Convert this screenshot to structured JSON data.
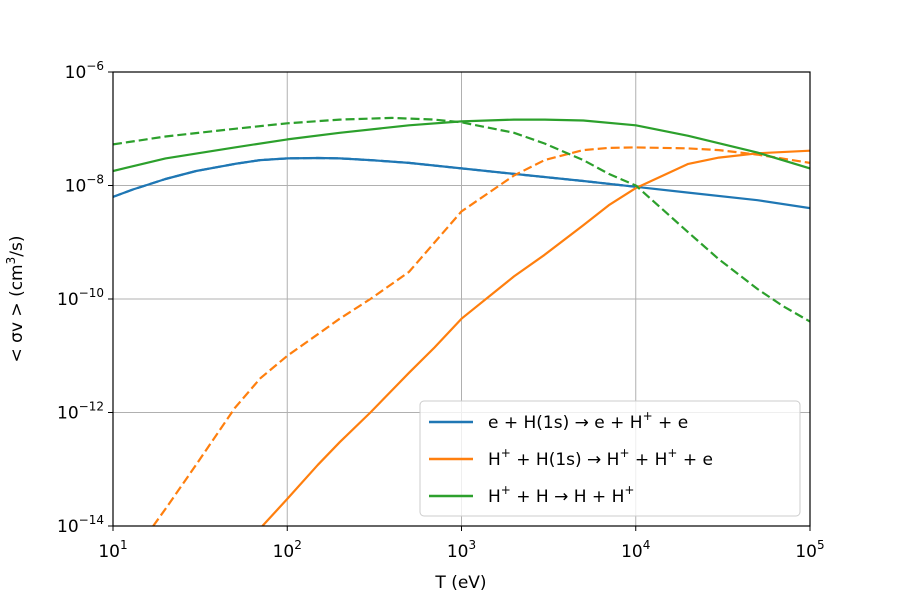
{
  "chart_data": {
    "type": "line",
    "xlabel": "T (eV)",
    "ylabel_parts": {
      "pre": "< σv >  (cm",
      "sup": "3",
      "post": "/s)"
    },
    "x_scale": "log",
    "y_scale": "log",
    "xlim": [
      10,
      100000
    ],
    "ylim": [
      1e-14,
      1e-06
    ],
    "grid": true,
    "legend_position": "lower-right",
    "x_ticks": [
      {
        "value": 10,
        "base": "10",
        "exp": "1"
      },
      {
        "value": 100,
        "base": "10",
        "exp": "2"
      },
      {
        "value": 1000,
        "base": "10",
        "exp": "3"
      },
      {
        "value": 10000,
        "base": "10",
        "exp": "4"
      },
      {
        "value": 100000,
        "base": "10",
        "exp": "5"
      }
    ],
    "y_ticks": [
      {
        "value": 1e-14,
        "base": "10",
        "exp": "−14"
      },
      {
        "value": 1e-12,
        "base": "10",
        "exp": "−12"
      },
      {
        "value": 1e-10,
        "base": "10",
        "exp": "−10"
      },
      {
        "value": 1e-08,
        "base": "10",
        "exp": "−8"
      },
      {
        "value": 1e-06,
        "base": "10",
        "exp": "−6"
      }
    ],
    "legend": [
      {
        "color": "#1f77b4",
        "parts": [
          {
            "t": "e + H(1s) → e + H"
          },
          {
            "t": "+",
            "sup": true
          },
          {
            "t": " + e"
          }
        ]
      },
      {
        "color": "#ff7f0e",
        "parts": [
          {
            "t": "H"
          },
          {
            "t": "+",
            "sup": true
          },
          {
            "t": " + H(1s) → H"
          },
          {
            "t": "+",
            "sup": true
          },
          {
            "t": " + H"
          },
          {
            "t": "+",
            "sup": true
          },
          {
            "t": " + e"
          }
        ]
      },
      {
        "color": "#2ca02c",
        "parts": [
          {
            "t": "H"
          },
          {
            "t": "+",
            "sup": true
          },
          {
            "t": " + H → H + H"
          },
          {
            "t": "+",
            "sup": true
          }
        ]
      }
    ],
    "series": [
      {
        "color": "#1f77b4",
        "dash": "solid",
        "x": [
          10,
          13,
          20,
          30,
          50,
          70,
          100,
          150,
          200,
          300,
          500,
          1000,
          2000,
          5000,
          10000,
          20000,
          50000,
          100000
        ],
        "y": [
          6.3e-09,
          8.5e-09,
          1.3e-08,
          1.8e-08,
          2.4e-08,
          2.8e-08,
          3e-08,
          3.05e-08,
          3e-08,
          2.8e-08,
          2.5e-08,
          2e-08,
          1.6e-08,
          1.2e-08,
          9.5e-09,
          7.5e-09,
          5.5e-09,
          4e-09
        ]
      },
      {
        "color": "#1f77b4",
        "dash": "dashed",
        "x": [
          10,
          13,
          20,
          30,
          50,
          70,
          100,
          150,
          200,
          300,
          500,
          1000,
          2000,
          5000,
          10000
        ],
        "y": [
          6.3e-09,
          8.5e-09,
          1.3e-08,
          1.8e-08,
          2.4e-08,
          2.8e-08,
          3e-08,
          3.05e-08,
          3e-08,
          2.8e-08,
          2.5e-08,
          2e-08,
          1.6e-08,
          1.2e-08,
          9.5e-09
        ]
      },
      {
        "color": "#ff7f0e",
        "dash": "solid",
        "x": [
          72,
          100,
          150,
          200,
          300,
          500,
          700,
          1000,
          2000,
          3000,
          5000,
          7000,
          10000,
          20000,
          30000,
          50000,
          100000
        ],
        "y": [
          1e-14,
          3e-14,
          1.2e-13,
          3e-13,
          1e-12,
          5e-12,
          1.4e-11,
          4.5e-11,
          2.5e-10,
          6e-10,
          2e-09,
          4.5e-09,
          9e-09,
          2.4e-08,
          3.1e-08,
          3.7e-08,
          4.1e-08
        ]
      },
      {
        "color": "#ff7f0e",
        "dash": "dashed",
        "x": [
          17,
          20,
          30,
          50,
          70,
          100,
          150,
          200,
          300,
          500,
          1000,
          2000,
          3000,
          5000,
          7000,
          10000,
          20000,
          30000,
          50000,
          100000
        ],
        "y": [
          1e-14,
          2e-14,
          1.2e-13,
          1.2e-12,
          4e-12,
          1e-11,
          2.4e-11,
          4.5e-11,
          1e-10,
          3e-10,
          3.5e-09,
          1.5e-08,
          2.8e-08,
          4.2e-08,
          4.6e-08,
          4.7e-08,
          4.5e-08,
          4.2e-08,
          3.5e-08,
          2.5e-08
        ]
      },
      {
        "color": "#2ca02c",
        "dash": "solid",
        "x": [
          10,
          20,
          50,
          100,
          200,
          500,
          1000,
          2000,
          3000,
          5000,
          10000,
          20000,
          50000,
          100000
        ],
        "y": [
          1.8e-08,
          3e-08,
          4.7e-08,
          6.5e-08,
          8.5e-08,
          1.15e-07,
          1.35e-07,
          1.45e-07,
          1.45e-07,
          1.4e-07,
          1.15e-07,
          7.5e-08,
          3.8e-08,
          2e-08
        ]
      },
      {
        "color": "#2ca02c",
        "dash": "dashed",
        "x": [
          10,
          20,
          50,
          100,
          200,
          400,
          700,
          1000,
          2000,
          3000,
          5000,
          7000,
          10000,
          20000,
          30000,
          50000,
          70000,
          100000
        ],
        "y": [
          5.3e-08,
          7.3e-08,
          1e-07,
          1.25e-07,
          1.45e-07,
          1.55e-07,
          1.45e-07,
          1.3e-07,
          8.5e-08,
          5.5e-08,
          2.8e-08,
          1.6e-08,
          1e-08,
          1.5e-09,
          5e-10,
          1.5e-10,
          7.5e-11,
          4e-11
        ]
      }
    ]
  }
}
